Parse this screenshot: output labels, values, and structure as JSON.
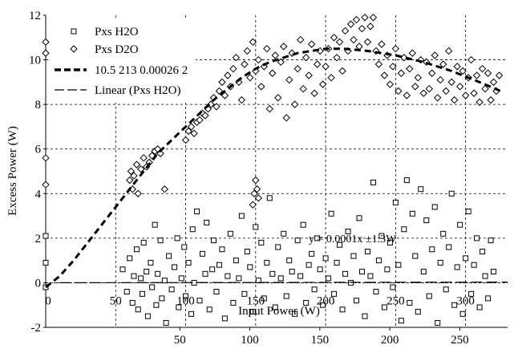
{
  "chart_data": {
    "type": "scatter",
    "title": "",
    "xlabel": "Input Power (W)",
    "ylabel": "Excess Power (W)",
    "xlim": [
      0,
      330
    ],
    "ylim": [
      -2,
      12
    ],
    "x_tick_labels_inner": [
      "0",
      "50",
      "100",
      "150",
      "200",
      "250",
      "300"
    ],
    "x_tick_labels_bottom": [
      "50",
      "100",
      "150",
      "200",
      "250"
    ],
    "y_tick_labels": [
      "-2",
      "0",
      "2",
      "4",
      "6",
      "8",
      "10",
      "12"
    ],
    "grid": true,
    "legend_position": "top-left",
    "legend": [
      {
        "label": "Pxs H2O",
        "marker": "square"
      },
      {
        "label": "Pxs D2O",
        "marker": "diamond"
      },
      {
        "label": "10.5 213 0.00026 2",
        "marker": "thick-dash"
      },
      {
        "label": "Linear (Pxs H2O)",
        "marker": "long-dash"
      }
    ],
    "annotation": "y = 0.0001x  ±1.3W",
    "series": [
      {
        "name": "Pxs H2O",
        "marker": "square",
        "points": [
          [
            0,
            2.1
          ],
          [
            0,
            0.9
          ],
          [
            0,
            -0.2
          ],
          [
            55,
            0.6
          ],
          [
            58,
            -0.4
          ],
          [
            60,
            1.1
          ],
          [
            62,
            -0.9
          ],
          [
            63,
            0.3
          ],
          [
            65,
            1.5
          ],
          [
            66,
            -1.2
          ],
          [
            68,
            0.2
          ],
          [
            69,
            -0.5
          ],
          [
            70,
            1.8
          ],
          [
            72,
            0.5
          ],
          [
            73,
            -1.5
          ],
          [
            75,
            0.9
          ],
          [
            76,
            -0.2
          ],
          [
            78,
            2.6
          ],
          [
            79,
            -1.0
          ],
          [
            80,
            0.4
          ],
          [
            82,
            1.9
          ],
          [
            83,
            -0.7
          ],
          [
            85,
            0.1
          ],
          [
            86,
            -1.8
          ],
          [
            88,
            1.2
          ],
          [
            90,
            -0.3
          ],
          [
            92,
            0.7
          ],
          [
            94,
            2.0
          ],
          [
            95,
            -1.1
          ],
          [
            97,
            0.2
          ],
          [
            99,
            1.6
          ],
          [
            100,
            -0.6
          ],
          [
            102,
            0.9
          ],
          [
            104,
            -1.4
          ],
          [
            105,
            2.4
          ],
          [
            106,
            0.0
          ],
          [
            108,
            3.2
          ],
          [
            110,
            -0.8
          ],
          [
            112,
            1.3
          ],
          [
            114,
            0.4
          ],
          [
            115,
            2.7
          ],
          [
            117,
            -1.2
          ],
          [
            119,
            0.6
          ],
          [
            120,
            1.9
          ],
          [
            122,
            -0.4
          ],
          [
            124,
            0.8
          ],
          [
            126,
            1.5
          ],
          [
            128,
            -1.6
          ],
          [
            130,
            0.3
          ],
          [
            132,
            2.2
          ],
          [
            134,
            -0.9
          ],
          [
            136,
            1.0
          ],
          [
            138,
            0.2
          ],
          [
            140,
            3.0
          ],
          [
            142,
            -0.5
          ],
          [
            144,
            1.4
          ],
          [
            146,
            0.7
          ],
          [
            148,
            -1.3
          ],
          [
            150,
            2.5
          ],
          [
            152,
            0.1
          ],
          [
            154,
            1.8
          ],
          [
            156,
            -0.7
          ],
          [
            158,
            0.9
          ],
          [
            160,
            3.8
          ],
          [
            162,
            0.4
          ],
          [
            164,
            -1.1
          ],
          [
            166,
            1.6
          ],
          [
            168,
            0.2
          ],
          [
            170,
            2.2
          ],
          [
            172,
            -0.6
          ],
          [
            174,
            1.0
          ],
          [
            176,
            0.5
          ],
          [
            178,
            -1.4
          ],
          [
            180,
            1.9
          ],
          [
            182,
            0.3
          ],
          [
            184,
            2.6
          ],
          [
            186,
            -0.9
          ],
          [
            188,
            0.8
          ],
          [
            190,
            1.3
          ],
          [
            192,
            -0.3
          ],
          [
            194,
            2.0
          ],
          [
            196,
            0.6
          ],
          [
            198,
            -1.0
          ],
          [
            200,
            1.1
          ],
          [
            202,
            0.2
          ],
          [
            204,
            3.1
          ],
          [
            206,
            -0.5
          ],
          [
            208,
            0.9
          ],
          [
            210,
            1.7
          ],
          [
            212,
            -1.2
          ],
          [
            214,
            0.4
          ],
          [
            216,
            2.3
          ],
          [
            218,
            0.0
          ],
          [
            220,
            1.2
          ],
          [
            222,
            -0.8
          ],
          [
            224,
            2.9
          ],
          [
            226,
            0.5
          ],
          [
            228,
            -1.5
          ],
          [
            230,
            1.4
          ],
          [
            232,
            0.3
          ],
          [
            234,
            4.5
          ],
          [
            236,
            -0.4
          ],
          [
            238,
            1.0
          ],
          [
            240,
            2.1
          ],
          [
            242,
            -1.1
          ],
          [
            244,
            0.6
          ],
          [
            246,
            1.8
          ],
          [
            248,
            -0.2
          ],
          [
            250,
            3.6
          ],
          [
            252,
            0.8
          ],
          [
            254,
            -1.7
          ],
          [
            256,
            2.4
          ],
          [
            258,
            4.6
          ],
          [
            260,
            -0.9
          ],
          [
            262,
            3.1
          ],
          [
            264,
            1.2
          ],
          [
            266,
            -1.3
          ],
          [
            268,
            4.2
          ],
          [
            270,
            0.5
          ],
          [
            272,
            2.8
          ],
          [
            274,
            -0.6
          ],
          [
            276,
            1.5
          ],
          [
            278,
            3.4
          ],
          [
            280,
            -1.8
          ],
          [
            282,
            0.9
          ],
          [
            284,
            2.2
          ],
          [
            286,
            -0.3
          ],
          [
            288,
            1.6
          ],
          [
            290,
            4.0
          ],
          [
            292,
            -1.0
          ],
          [
            294,
            0.7
          ],
          [
            296,
            2.6
          ],
          [
            298,
            -1.4
          ],
          [
            300,
            1.1
          ],
          [
            302,
            3.2
          ],
          [
            304,
            -0.5
          ],
          [
            306,
            0.8
          ],
          [
            308,
            2.0
          ],
          [
            310,
            -1.1
          ],
          [
            312,
            1.4
          ],
          [
            314,
            0.3
          ],
          [
            316,
            -0.7
          ],
          [
            318,
            1.9
          ],
          [
            320,
            0.5
          ]
        ]
      },
      {
        "name": "Pxs D2O",
        "marker": "diamond",
        "points": [
          [
            0,
            10.8
          ],
          [
            0,
            10.3
          ],
          [
            0,
            5.6
          ],
          [
            0,
            4.4
          ],
          [
            60,
            4.6
          ],
          [
            61,
            5.0
          ],
          [
            62,
            4.2
          ],
          [
            63,
            4.8
          ],
          [
            65,
            5.3
          ],
          [
            66,
            4.0
          ],
          [
            68,
            5.1
          ],
          [
            70,
            5.6
          ],
          [
            72,
            5.2
          ],
          [
            74,
            5.4
          ],
          [
            76,
            5.7
          ],
          [
            78,
            5.9
          ],
          [
            80,
            6.0
          ],
          [
            82,
            5.8
          ],
          [
            85,
            4.2
          ],
          [
            100,
            6.4
          ],
          [
            102,
            6.8
          ],
          [
            104,
            7.0
          ],
          [
            106,
            6.7
          ],
          [
            108,
            7.2
          ],
          [
            110,
            7.3
          ],
          [
            112,
            7.6
          ],
          [
            114,
            7.5
          ],
          [
            116,
            7.8
          ],
          [
            118,
            8.0
          ],
          [
            120,
            8.3
          ],
          [
            122,
            7.9
          ],
          [
            124,
            8.6
          ],
          [
            126,
            9.0
          ],
          [
            128,
            8.4
          ],
          [
            130,
            9.3
          ],
          [
            132,
            8.8
          ],
          [
            134,
            9.6
          ],
          [
            136,
            10.1
          ],
          [
            138,
            9.0
          ],
          [
            140,
            8.2
          ],
          [
            142,
            9.8
          ],
          [
            144,
            10.4
          ],
          [
            146,
            9.2
          ],
          [
            148,
            10.8
          ],
          [
            150,
            9.5
          ],
          [
            152,
            10.0
          ],
          [
            154,
            8.8
          ],
          [
            156,
            9.7
          ],
          [
            158,
            10.5
          ],
          [
            160,
            7.8
          ],
          [
            162,
            9.4
          ],
          [
            164,
            10.2
          ],
          [
            166,
            8.3
          ],
          [
            168,
            9.9
          ],
          [
            170,
            10.6
          ],
          [
            172,
            7.4
          ],
          [
            174,
            9.1
          ],
          [
            176,
            10.3
          ],
          [
            178,
            8.0
          ],
          [
            180,
            9.6
          ],
          [
            182,
            10.9
          ],
          [
            184,
            8.7
          ],
          [
            186,
            10.1
          ],
          [
            188,
            9.3
          ],
          [
            190,
            10.7
          ],
          [
            192,
            8.5
          ],
          [
            194,
            9.8
          ],
          [
            196,
            10.4
          ],
          [
            198,
            8.9
          ],
          [
            200,
            9.7
          ],
          [
            202,
            10.5
          ],
          [
            204,
            9.2
          ],
          [
            206,
            11.0
          ],
          [
            208,
            10.1
          ],
          [
            210,
            10.8
          ],
          [
            212,
            9.5
          ],
          [
            214,
            11.3
          ],
          [
            216,
            10.4
          ],
          [
            218,
            11.6
          ],
          [
            220,
            10.9
          ],
          [
            222,
            11.8
          ],
          [
            224,
            10.6
          ],
          [
            226,
            11.4
          ],
          [
            228,
            11.9
          ],
          [
            230,
            10.8
          ],
          [
            232,
            11.5
          ],
          [
            234,
            11.9
          ],
          [
            236,
            10.4
          ],
          [
            238,
            9.8
          ],
          [
            240,
            10.7
          ],
          [
            242,
            9.3
          ],
          [
            244,
            10.2
          ],
          [
            246,
            8.9
          ],
          [
            248,
            9.7
          ],
          [
            250,
            10.5
          ],
          [
            252,
            8.6
          ],
          [
            254,
            9.4
          ],
          [
            256,
            10.1
          ],
          [
            258,
            8.4
          ],
          [
            260,
            9.6
          ],
          [
            262,
            10.3
          ],
          [
            264,
            8.8
          ],
          [
            266,
            9.2
          ],
          [
            268,
            10.0
          ],
          [
            270,
            8.5
          ],
          [
            272,
            9.9
          ],
          [
            274,
            8.7
          ],
          [
            276,
            9.4
          ],
          [
            278,
            10.2
          ],
          [
            280,
            8.3
          ],
          [
            282,
            9.1
          ],
          [
            284,
            9.8
          ],
          [
            286,
            8.6
          ],
          [
            288,
            10.4
          ],
          [
            290,
            9.0
          ],
          [
            292,
            8.2
          ],
          [
            294,
            9.7
          ],
          [
            296,
            8.8
          ],
          [
            298,
            9.5
          ],
          [
            300,
            8.4
          ],
          [
            302,
            9.2
          ],
          [
            304,
            10.0
          ],
          [
            306,
            8.5
          ],
          [
            308,
            9.3
          ],
          [
            310,
            8.1
          ],
          [
            312,
            9.6
          ],
          [
            314,
            8.7
          ],
          [
            316,
            9.4
          ],
          [
            318,
            8.2
          ],
          [
            320,
            9.0
          ],
          [
            322,
            8.6
          ],
          [
            324,
            9.3
          ],
          [
            150,
            4.6
          ],
          [
            151,
            4.2
          ],
          [
            152,
            3.8
          ],
          [
            149,
            4.0
          ],
          [
            148,
            3.5
          ]
        ]
      },
      {
        "name": "10.5 213 0.00026 2",
        "style": "thick-dash",
        "points": [
          [
            0,
            -0.2
          ],
          [
            10,
            0.3
          ],
          [
            20,
            1.0
          ],
          [
            30,
            1.8
          ],
          [
            40,
            2.6
          ],
          [
            50,
            3.4
          ],
          [
            60,
            4.2
          ],
          [
            70,
            5.0
          ],
          [
            80,
            5.8
          ],
          [
            90,
            6.4
          ],
          [
            100,
            7.0
          ],
          [
            110,
            7.6
          ],
          [
            120,
            8.2
          ],
          [
            130,
            8.7
          ],
          [
            140,
            9.2
          ],
          [
            150,
            9.6
          ],
          [
            160,
            9.9
          ],
          [
            170,
            10.1
          ],
          [
            180,
            10.3
          ],
          [
            190,
            10.4
          ],
          [
            200,
            10.5
          ],
          [
            213,
            10.5
          ],
          [
            230,
            10.4
          ],
          [
            250,
            10.2
          ],
          [
            270,
            9.9
          ],
          [
            290,
            9.5
          ],
          [
            310,
            9.0
          ],
          [
            325,
            8.6
          ]
        ]
      },
      {
        "name": "Linear (Pxs H2O)",
        "style": "long-dash",
        "points": [
          [
            10,
            0.0
          ],
          [
            330,
            0.03
          ]
        ]
      }
    ]
  }
}
